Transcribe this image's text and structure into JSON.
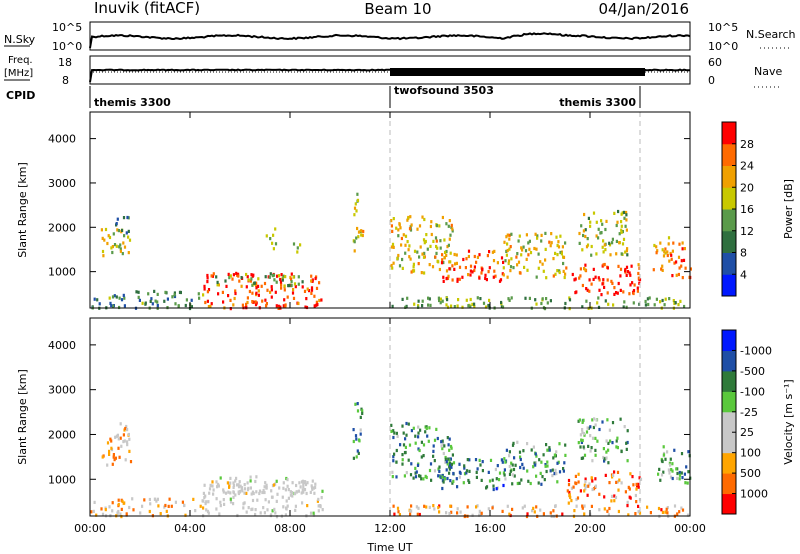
{
  "header": {
    "station": "Inuvik (fitACF)",
    "beam": "Beam 10",
    "date": "04/Jan/2016"
  },
  "top_panels": {
    "nsky_label": "N.Sky",
    "nsearch_label": "N.Search",
    "freq_label_line1": "Freq.",
    "freq_label_line2": "[MHz]",
    "nave_label": "Nave",
    "cpid_label": "CPID",
    "sky_ticks": [
      "10^5",
      "10^0"
    ],
    "search_ticks": [
      "10^5",
      "10^0"
    ],
    "freq_ticks": [
      "18",
      "8"
    ],
    "nave_ticks": [
      "60",
      "0"
    ]
  },
  "cpid_segments": [
    {
      "label": "themis 3300",
      "start_hour": 0,
      "end_hour": 12
    },
    {
      "label": "twofsound 3503",
      "start_hour": 12,
      "end_hour": 22
    },
    {
      "label": "themis 3300",
      "start_hour": 22,
      "end_hour": 24
    }
  ],
  "colors": {
    "power_scale": [
      "#0018ff",
      "#1f4fa6",
      "#2f6f3f",
      "#5a9a4a",
      "#c8c800",
      "#f0a000",
      "#ff6a00",
      "#ff0000"
    ],
    "velocity_scale": [
      "#ff0000",
      "#ff6a00",
      "#ffa500",
      "#c8c8c8",
      "#c8c8c8",
      "#5ac83c",
      "#2f7a3a",
      "#1f4fa6",
      "#0018ff"
    ],
    "ground_scatter": "#c8c8c8"
  },
  "chart_data": [
    {
      "type": "heatmap",
      "panel": "power",
      "title": "",
      "xlabel": "",
      "ylabel": "Slant Range [km]",
      "xlim": [
        0,
        24
      ],
      "ylim": [
        180,
        4600
      ],
      "x_tick_labels": [
        "00:00",
        "04:00",
        "08:00",
        "12:00",
        "16:00",
        "20:00",
        "00:00"
      ],
      "x_ticks_hours": [
        0,
        4,
        8,
        12,
        16,
        20,
        24
      ],
      "y_ticks": [
        1000,
        2000,
        3000,
        4000
      ],
      "colorbar": {
        "label": "Power [dB]",
        "range": [
          0,
          32
        ],
        "tick_labels": [
          "4",
          "8",
          "12",
          "16",
          "20",
          "24",
          "28"
        ],
        "tick_values": [
          4,
          8,
          12,
          16,
          20,
          24,
          28
        ]
      },
      "scatter_regions": [
        {
          "t0": 0.4,
          "t1": 1.6,
          "r0": 1300,
          "r1": 2000,
          "level": 0.55
        },
        {
          "t0": 1.0,
          "t1": 1.6,
          "r0": 1900,
          "r1": 2300,
          "level": 0.3
        },
        {
          "t0": 0.0,
          "t1": 4.5,
          "r0": 200,
          "r1": 600,
          "level": 0.35
        },
        {
          "t0": 4.5,
          "t1": 9.3,
          "r0": 200,
          "r1": 1000,
          "level": 0.88
        },
        {
          "t0": 5.0,
          "t1": 8.5,
          "r0": 700,
          "r1": 1000,
          "level": 0.45
        },
        {
          "t0": 7.0,
          "t1": 7.4,
          "r0": 1500,
          "r1": 2000,
          "level": 0.5
        },
        {
          "t0": 8.0,
          "t1": 8.4,
          "r0": 1400,
          "r1": 1700,
          "level": 0.5
        },
        {
          "t0": 10.5,
          "t1": 10.9,
          "r0": 1500,
          "r1": 2800,
          "level": 0.6
        },
        {
          "t0": 12.0,
          "t1": 14.5,
          "r0": 1000,
          "r1": 2300,
          "level": 0.6
        },
        {
          "t0": 14.0,
          "t1": 16.5,
          "r0": 800,
          "r1": 1500,
          "level": 0.85
        },
        {
          "t0": 16.5,
          "t1": 19.0,
          "r0": 900,
          "r1": 1900,
          "level": 0.6
        },
        {
          "t0": 19.0,
          "t1": 22.0,
          "r0": 500,
          "r1": 1200,
          "level": 0.9
        },
        {
          "t0": 19.5,
          "t1": 21.5,
          "r0": 1400,
          "r1": 2400,
          "level": 0.5
        },
        {
          "t0": 22.5,
          "t1": 23.2,
          "r0": 1000,
          "r1": 1800,
          "level": 0.7
        },
        {
          "t0": 23.2,
          "t1": 24.0,
          "r0": 900,
          "r1": 1700,
          "level": 0.85
        },
        {
          "t0": 12.0,
          "t1": 24.0,
          "r0": 200,
          "r1": 450,
          "level": 0.45
        }
      ]
    },
    {
      "type": "heatmap",
      "panel": "velocity",
      "title": "",
      "xlabel": "Time UT",
      "ylabel": "Slant Range [km]",
      "xlim": [
        0,
        24
      ],
      "ylim": [
        180,
        4600
      ],
      "x_tick_labels": [
        "00:00",
        "04:00",
        "08:00",
        "12:00",
        "16:00",
        "20:00",
        "00:00"
      ],
      "x_ticks_hours": [
        0,
        4,
        8,
        12,
        16,
        20,
        24
      ],
      "y_ticks": [
        1000,
        2000,
        3000,
        4000
      ],
      "colorbar": {
        "label": "Velocity [m s⁻¹]",
        "range": [
          -1500,
          1500
        ],
        "tick_labels": [
          "1000",
          "500",
          "100",
          "25",
          "-25",
          "-100",
          "-500",
          "-1000"
        ],
        "tick_values": [
          1000,
          500,
          100,
          25,
          -25,
          -100,
          -500,
          -1000
        ]
      },
      "scatter_regions": [
        {
          "t0": 0.4,
          "t1": 1.6,
          "r0": 1300,
          "r1": 2000,
          "level": 0.3
        },
        {
          "t0": 1.0,
          "t1": 1.6,
          "r0": 1900,
          "r1": 2300,
          "level": 0.35
        },
        {
          "t0": 0.0,
          "t1": 4.5,
          "r0": 200,
          "r1": 600,
          "level": 0.3
        },
        {
          "t0": 4.5,
          "t1": 9.3,
          "r0": 200,
          "r1": 1000,
          "level": 0.45
        },
        {
          "t0": 5.0,
          "t1": 9.0,
          "r0": 700,
          "r1": 1100,
          "level": 0.47
        },
        {
          "t0": 10.5,
          "t1": 10.9,
          "r0": 1500,
          "r1": 2800,
          "level": 0.7
        },
        {
          "t0": 12.0,
          "t1": 14.5,
          "r0": 1000,
          "r1": 2300,
          "level": 0.7
        },
        {
          "t0": 14.0,
          "t1": 16.5,
          "r0": 800,
          "r1": 1500,
          "level": 0.72
        },
        {
          "t0": 16.5,
          "t1": 19.0,
          "r0": 900,
          "r1": 1900,
          "level": 0.68
        },
        {
          "t0": 19.0,
          "t1": 22.0,
          "r0": 500,
          "r1": 1200,
          "level": 0.22
        },
        {
          "t0": 19.5,
          "t1": 21.5,
          "r0": 1400,
          "r1": 2400,
          "level": 0.65
        },
        {
          "t0": 22.5,
          "t1": 23.2,
          "r0": 1000,
          "r1": 1800,
          "level": 0.6
        },
        {
          "t0": 23.2,
          "t1": 24.0,
          "r0": 900,
          "r1": 1700,
          "level": 0.7
        },
        {
          "t0": 12.0,
          "t1": 24.0,
          "r0": 200,
          "r1": 450,
          "level": 0.25
        }
      ]
    }
  ]
}
